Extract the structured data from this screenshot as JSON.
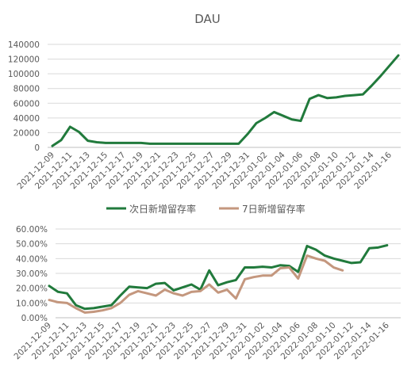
{
  "chart_data": [
    {
      "type": "line",
      "title": "DAU",
      "xlabel": "",
      "ylabel": "",
      "ylim": [
        0,
        140000
      ],
      "yticks": [
        "0",
        "20000",
        "40000",
        "60000",
        "80000",
        "100000",
        "120000",
        "140000"
      ],
      "x_tick_labels": [
        "2021-12-09",
        "2021-12-11",
        "2021-12-13",
        "2021-12-15",
        "2021-12-17",
        "2021-12-19",
        "2021-12-21",
        "2021-12-23",
        "2021-12-25",
        "2021-12-27",
        "2021-12-29",
        "2021-12-31",
        "2022-01-02",
        "2022-01-04",
        "2022-01-06",
        "2022-01-08",
        "2022-01-10",
        "2022-01-12",
        "2022-01-14",
        "2022-01-16"
      ],
      "grid": true,
      "legend": "none",
      "x": [
        "2021-12-09",
        "2021-12-10",
        "2021-12-11",
        "2021-12-12",
        "2021-12-13",
        "2021-12-14",
        "2021-12-15",
        "2021-12-16",
        "2021-12-17",
        "2021-12-18",
        "2021-12-19",
        "2021-12-20",
        "2021-12-21",
        "2021-12-22",
        "2021-12-23",
        "2021-12-24",
        "2021-12-25",
        "2021-12-26",
        "2021-12-27",
        "2021-12-28",
        "2021-12-29",
        "2021-12-30",
        "2021-12-31",
        "2022-01-01",
        "2022-01-02",
        "2022-01-03",
        "2022-01-04",
        "2022-01-05",
        "2022-01-06",
        "2022-01-07",
        "2022-01-08",
        "2022-01-09",
        "2022-01-10",
        "2022-01-11",
        "2022-01-12",
        "2022-01-13",
        "2022-01-14",
        "2022-01-15",
        "2022-01-16",
        "2022-01-17"
      ],
      "series": [
        {
          "name": "",
          "color": "#217a3c",
          "values": [
            2000,
            10000,
            28000,
            21000,
            9000,
            7000,
            6000,
            6000,
            6000,
            6000,
            6000,
            5000,
            5000,
            5000,
            5000,
            5000,
            5000,
            5000,
            5000,
            5000,
            5000,
            5000,
            18000,
            33000,
            40000,
            48000,
            43000,
            38000,
            36000,
            66000,
            71000,
            67000,
            68000,
            70000,
            71000,
            72000,
            84000,
            97000,
            111000,
            125000
          ]
        }
      ]
    },
    {
      "type": "line",
      "title": "",
      "xlabel": "",
      "ylabel": "",
      "ylim": [
        0,
        60
      ],
      "yticks": [
        "0.00%",
        "10.00%",
        "20.00%",
        "30.00%",
        "40.00%",
        "50.00%",
        "60.00%"
      ],
      "x_tick_labels": [
        "2021-12-09",
        "2021-12-11",
        "2021-12-13",
        "2021-12-15",
        "2021-12-17",
        "2021-12-19",
        "2021-12-21",
        "2021-12-23",
        "2021-12-25",
        "2021-12-27",
        "2021-12-29",
        "2021-12-31",
        "2022-01-02",
        "2022-01-04",
        "2022-01-06",
        "2022-01-08",
        "2022-01-10",
        "2022-01-12",
        "2022-01-14",
        "2022-01-16"
      ],
      "grid": true,
      "legend": "top-center",
      "x": [
        "2021-12-09",
        "2021-12-10",
        "2021-12-11",
        "2021-12-12",
        "2021-12-13",
        "2021-12-14",
        "2021-12-15",
        "2021-12-16",
        "2021-12-17",
        "2021-12-18",
        "2021-12-19",
        "2021-12-20",
        "2021-12-21",
        "2021-12-22",
        "2021-12-23",
        "2021-12-24",
        "2021-12-25",
        "2021-12-26",
        "2021-12-27",
        "2021-12-28",
        "2021-12-29",
        "2021-12-30",
        "2021-12-31",
        "2022-01-01",
        "2022-01-02",
        "2022-01-03",
        "2022-01-04",
        "2022-01-05",
        "2022-01-06",
        "2022-01-07",
        "2022-01-08",
        "2022-01-09",
        "2022-01-10",
        "2022-01-11",
        "2022-01-12",
        "2022-01-13",
        "2022-01-14",
        "2022-01-15",
        "2022-01-16",
        "2022-01-17"
      ],
      "series": [
        {
          "name": "次日新增留存率",
          "color": "#217a3c",
          "values": [
            21.5,
            17.5,
            16.5,
            8.5,
            6.0,
            6.5,
            7.5,
            8.5,
            15.0,
            21.0,
            20.5,
            20.0,
            23.0,
            23.5,
            18.5,
            20.5,
            22.5,
            19.0,
            32.0,
            22.0,
            24.0,
            25.5,
            34.0,
            34.0,
            34.5,
            34.0,
            35.5,
            35.0,
            31.0,
            48.5,
            46.0,
            42.0,
            40.0,
            38.5,
            37.0,
            37.5,
            47.0,
            47.5,
            49.0,
            null
          ]
        },
        {
          "name": "7日新增留存率",
          "color": "#c4977e",
          "values": [
            12.0,
            10.5,
            10.0,
            6.5,
            3.5,
            4.0,
            5.0,
            6.5,
            10.0,
            15.5,
            18.0,
            16.5,
            15.0,
            19.0,
            16.5,
            15.0,
            17.5,
            18.0,
            22.5,
            17.0,
            19.0,
            13.0,
            26.0,
            27.5,
            28.5,
            28.5,
            33.5,
            34.0,
            26.5,
            42.0,
            40.0,
            38.5,
            34.0,
            32.0,
            null,
            null,
            null,
            null,
            null,
            null
          ]
        }
      ]
    }
  ]
}
